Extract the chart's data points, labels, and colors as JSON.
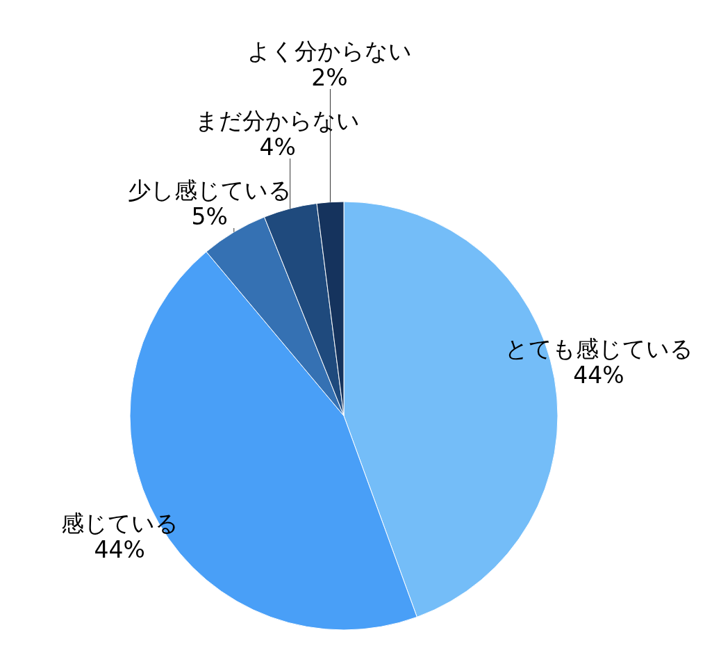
{
  "chart_data": {
    "type": "pie",
    "categories": [
      "とても感じている",
      "感じている",
      "少し感じている",
      "まだ分からない",
      "よく分からない"
    ],
    "values": [
      44,
      44,
      5,
      4,
      2
    ],
    "value_labels": [
      "44%",
      "44%",
      "5%",
      "4%",
      "2%"
    ],
    "colors": [
      "#74bdf8",
      "#499ff7",
      "#3571b3",
      "#1f4a7d",
      "#15335d"
    ],
    "legend": false
  }
}
